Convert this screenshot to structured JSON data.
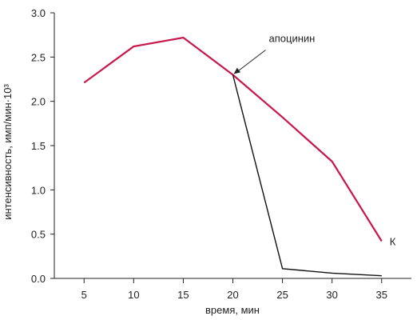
{
  "chart_data": {
    "type": "line",
    "xlabel": "время, мин",
    "ylabel": "интенсивность, имп/мин·10³",
    "xlim": [
      2,
      38
    ],
    "ylim": [
      0,
      3.0
    ],
    "xticks": [
      5,
      10,
      15,
      20,
      25,
      30,
      35
    ],
    "xtick_labels": [
      "5",
      "10",
      "15",
      "20",
      "25",
      "30",
      "35"
    ],
    "yticks": [
      0,
      0.5,
      1.0,
      1.5,
      2.0,
      2.5,
      3.0
    ],
    "ytick_labels": [
      "0.0",
      "0.5",
      "1.0",
      "1.5",
      "2.0",
      "2.5",
      "3.0"
    ],
    "grid": false,
    "series": [
      {
        "name": "К",
        "color": "#c8174a",
        "x": [
          5,
          10,
          15,
          20,
          25,
          30,
          35
        ],
        "y": [
          2.21,
          2.62,
          2.72,
          2.3,
          1.82,
          1.32,
          0.42
        ]
      },
      {
        "name": "",
        "color": "#111111",
        "x": [
          20,
          25,
          30,
          35
        ],
        "y": [
          2.3,
          0.11,
          0.06,
          0.03
        ]
      }
    ],
    "annotations": [
      {
        "text": "апоцинин",
        "x": 20,
        "y": 2.3
      }
    ]
  }
}
